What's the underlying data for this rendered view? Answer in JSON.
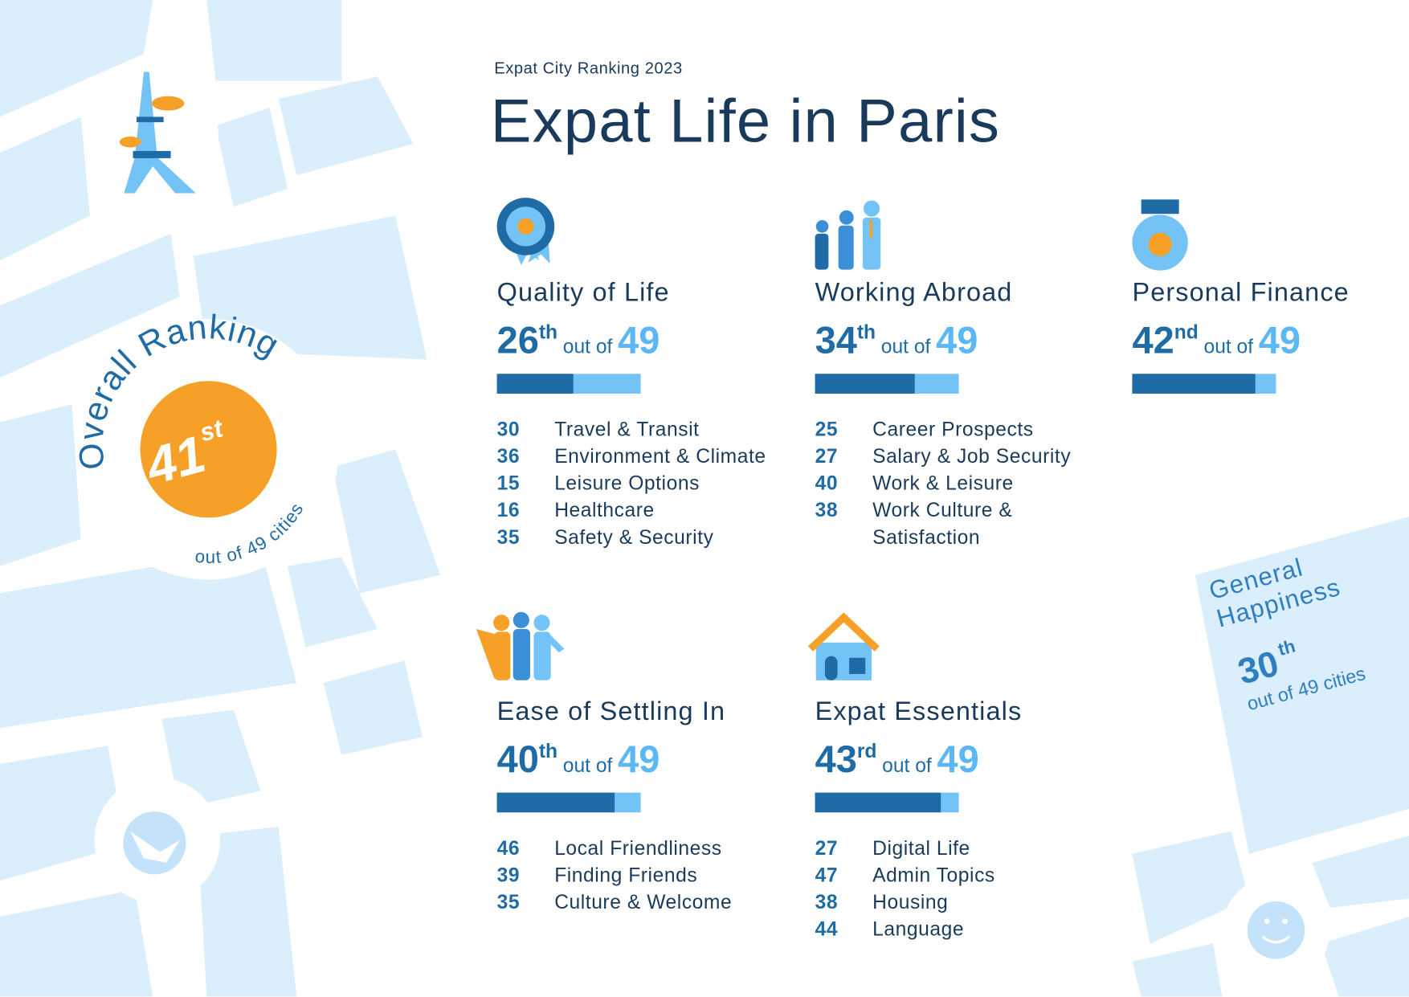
{
  "header": {
    "subtitle": "Expat City Ranking 2023",
    "title": "Expat Life in Paris"
  },
  "overall": {
    "label": "Overall Ranking",
    "rank": 41,
    "suffix": "st",
    "note": "out of 49 cities"
  },
  "categories": [
    {
      "title": "Quality of Life",
      "rank": 26,
      "suffix": "th",
      "out_of": "out of",
      "total": 49,
      "items": [
        {
          "rank": 30,
          "label": "Travel & Transit"
        },
        {
          "rank": 36,
          "label": "Environment & Climate"
        },
        {
          "rank": 15,
          "label": "Leisure Options"
        },
        {
          "rank": 16,
          "label": "Healthcare"
        },
        {
          "rank": 35,
          "label": "Safety & Security"
        }
      ]
    },
    {
      "title": "Working Abroad",
      "rank": 34,
      "suffix": "th",
      "out_of": "out of",
      "total": 49,
      "items": [
        {
          "rank": 25,
          "label": "Career Prospects"
        },
        {
          "rank": 27,
          "label": "Salary & Job Security"
        },
        {
          "rank": 40,
          "label": "Work & Leisure"
        },
        {
          "rank": 38,
          "label": "Work Culture & Satisfaction"
        }
      ]
    },
    {
      "title": "Personal Finance",
      "rank": 42,
      "suffix": "nd",
      "out_of": "out of",
      "total": 49,
      "items": []
    },
    {
      "title": "Ease of Settling In",
      "rank": 40,
      "suffix": "th",
      "out_of": "out of",
      "total": 49,
      "items": [
        {
          "rank": 46,
          "label": "Local Friendliness"
        },
        {
          "rank": 39,
          "label": "Finding Friends"
        },
        {
          "rank": 35,
          "label": "Culture & Welcome"
        }
      ]
    },
    {
      "title": "Expat Essentials",
      "rank": 43,
      "suffix": "rd",
      "out_of": "out of",
      "total": 49,
      "items": [
        {
          "rank": 27,
          "label": "Digital Life"
        },
        {
          "rank": 47,
          "label": "Admin Topics"
        },
        {
          "rank": 38,
          "label": "Housing"
        },
        {
          "rank": 44,
          "label": "Language"
        }
      ]
    }
  ],
  "general_happiness": {
    "title": "General Happiness",
    "rank": 30,
    "suffix": "th",
    "note": "out of 49 cities"
  }
}
